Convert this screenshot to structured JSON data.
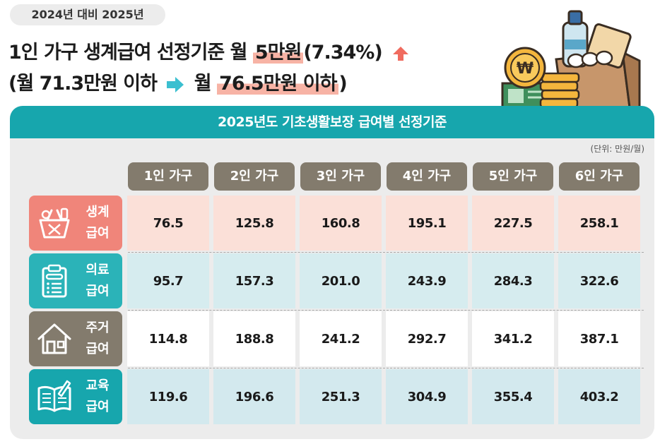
{
  "badge": "2024년 대비 2025년",
  "headline": {
    "line1_prefix": "1인 가구 생계급여 선정기준 월 ",
    "line1_highlight": "5만원",
    "line1_suffix": "(7.34%)",
    "line2_prefix": "(월 71.3만원 이하",
    "line2_middle": "월 ",
    "line2_highlight": "76.5만원 이하",
    "line2_suffix": ")"
  },
  "panel": {
    "title": "2025년도 기초생활보장 급여별 선정기준",
    "unit": "(단위: 만원/월)"
  },
  "table": {
    "columns": [
      "1인 가구",
      "2인 가구",
      "3인 가구",
      "4인 가구",
      "5인 가구",
      "6인 가구"
    ],
    "rows": [
      {
        "line1": "생계",
        "line2": "급여",
        "icon": "shopping-basket-icon",
        "color": "#f0857a",
        "cell_bg": "#fbe0d8",
        "values": [
          "76.5",
          "125.8",
          "160.8",
          "195.1",
          "227.5",
          "258.1"
        ]
      },
      {
        "line1": "의료",
        "line2": "급여",
        "icon": "medical-clipboard-icon",
        "color": "#2bb3b8",
        "cell_bg": "#d6ecef",
        "values": [
          "95.7",
          "157.3",
          "201.0",
          "243.9",
          "284.3",
          "322.6"
        ]
      },
      {
        "line1": "주거",
        "line2": "급여",
        "icon": "house-icon",
        "color": "#837b6d",
        "cell_bg": "#ffffff",
        "values": [
          "114.8",
          "188.8",
          "241.2",
          "292.7",
          "341.2",
          "387.1"
        ]
      },
      {
        "line1": "교육",
        "line2": "급여",
        "icon": "book-pencil-icon",
        "color": "#17a6ad",
        "cell_bg": "#d3e9ee",
        "values": [
          "119.6",
          "196.6",
          "251.3",
          "304.9",
          "355.4",
          "403.2"
        ]
      }
    ]
  },
  "colors": {
    "accent_teal": "#17a6ad",
    "header_brown": "#837b6d",
    "highlight_salmon": "#f7b3a5",
    "arrow_up": "#f06b5f",
    "arrow_right": "#3bbfd0"
  },
  "illustration": {
    "icon": "grocery-bag-with-coins-icon",
    "coin_symbol": "₩"
  }
}
